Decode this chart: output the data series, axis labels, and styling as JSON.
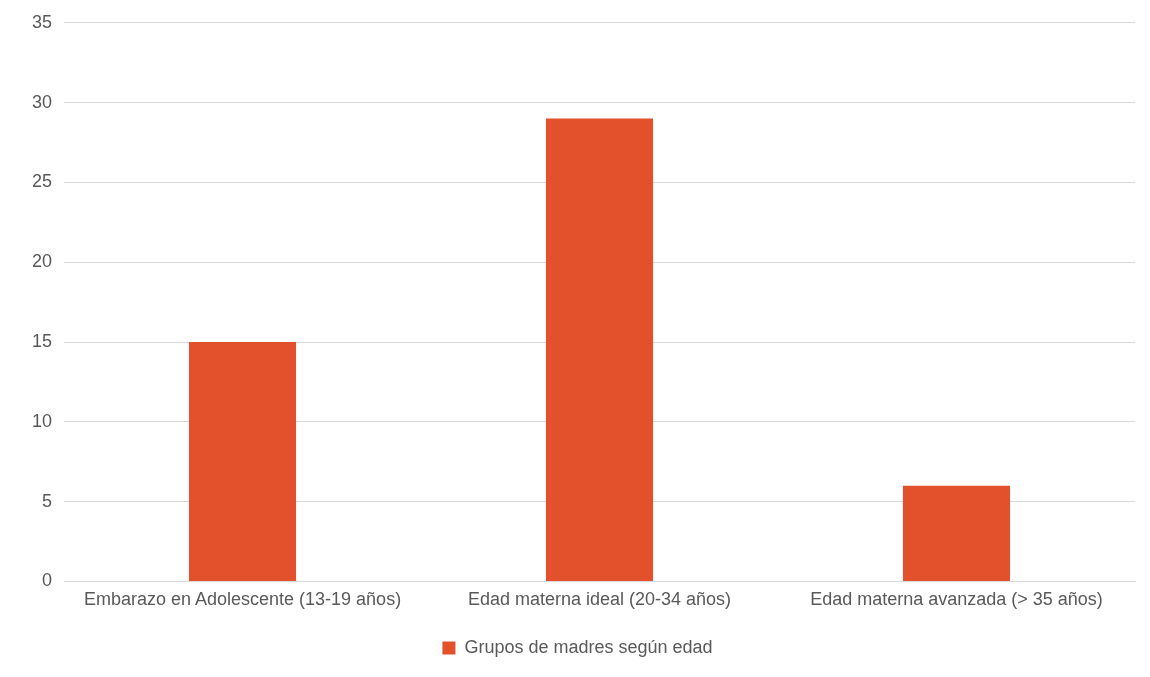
{
  "chart_data": {
    "type": "bar",
    "categories": [
      "Embarazo en Adolescente (13-19 años)",
      "Edad materna ideal (20-34 años)",
      "Edad materna avanzada (> 35 años)"
    ],
    "series": [
      {
        "name": "Grupos de madres según edad",
        "color": "#e2502c",
        "values": [
          15,
          29,
          6
        ]
      }
    ],
    "ylim": [
      0,
      35
    ],
    "yticks": [
      0,
      5,
      10,
      15,
      20,
      25,
      30,
      35
    ],
    "grid": "y",
    "legend": "bottom"
  }
}
